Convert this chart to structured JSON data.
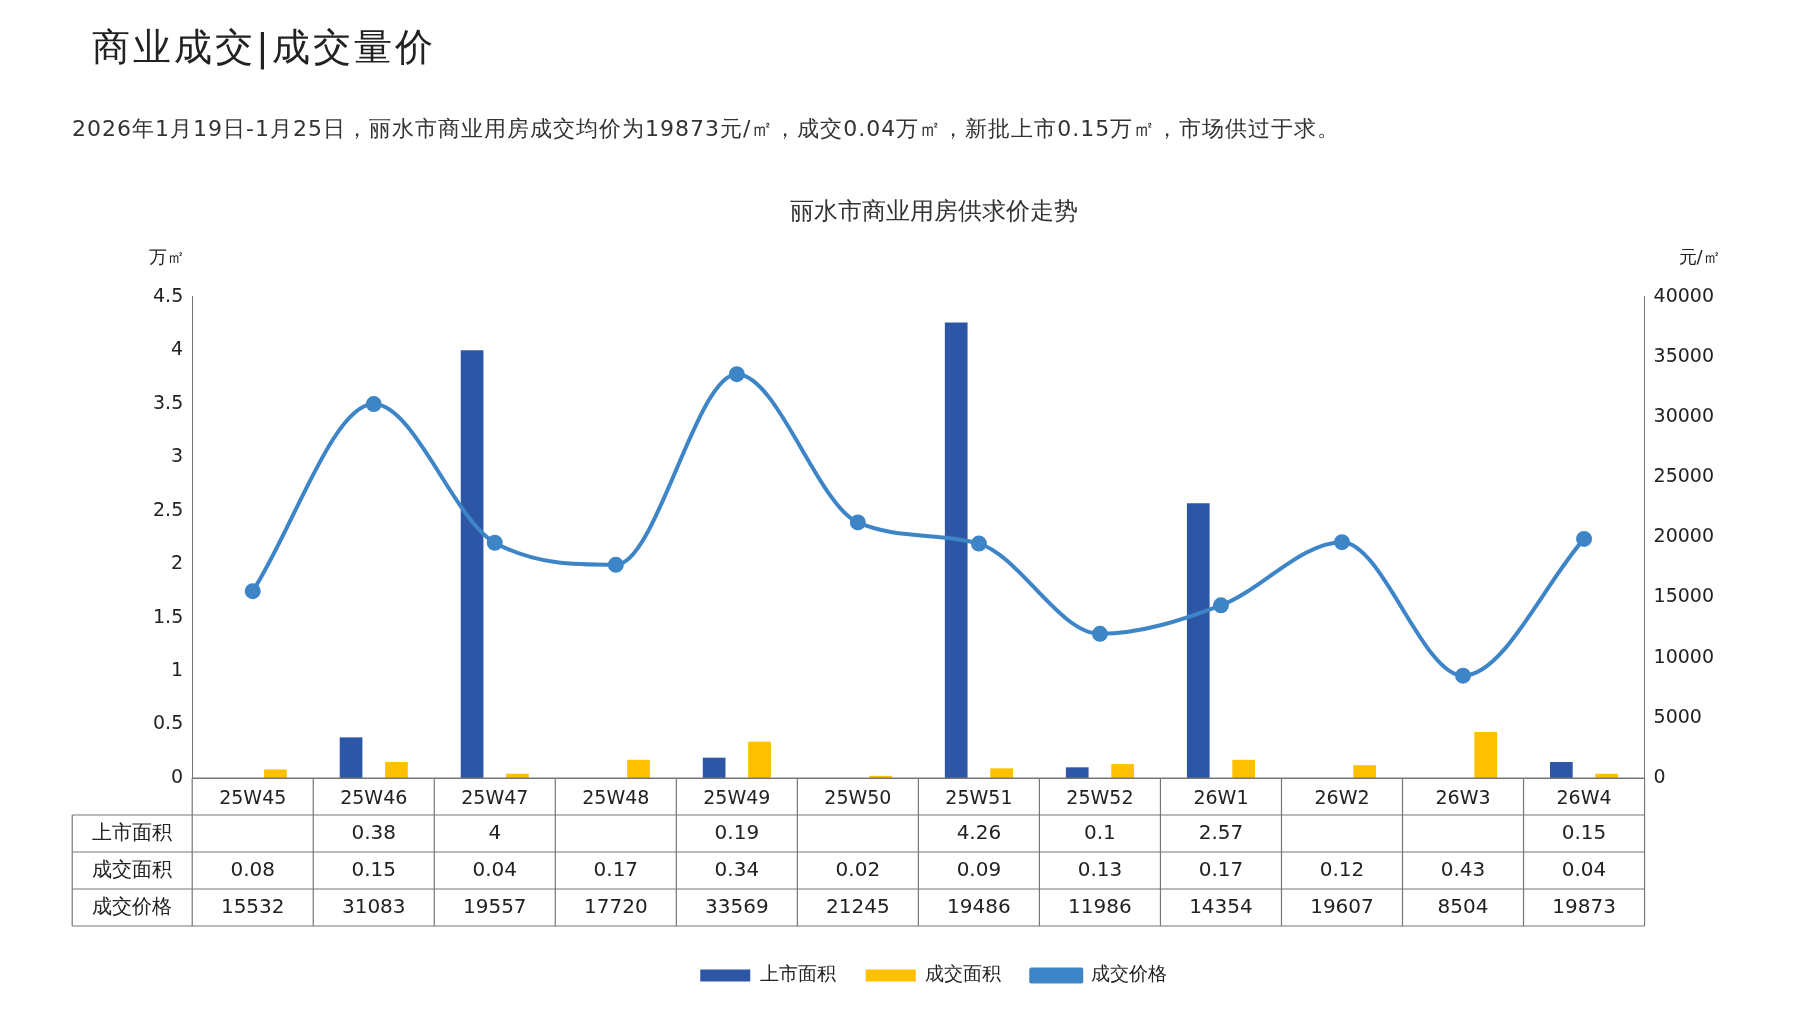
{
  "chart_data": {
    "type": "bar",
    "title": "丽水市商业用房供求价走势",
    "subtitle": "商业成交|成交量价",
    "annotations": [
      "2026年1月19日-1月25日，丽水市商业用房成交均价为19873元/㎡，成交0.04万㎡，新批上市0.15万㎡，市场供过于求。"
    ],
    "ylabel": "万㎡",
    "y2label": "元/㎡",
    "categories": [
      "25W45",
      "25W46",
      "25W47",
      "25W48",
      "25W49",
      "25W50",
      "25W51",
      "25W52",
      "26W1",
      "26W2",
      "26W3",
      "26W4"
    ],
    "series": [
      {
        "name": "上市面积",
        "color": "#2e56a6",
        "values": [
          null,
          0.38,
          4,
          null,
          0.19,
          null,
          4.26,
          0.1,
          2.57,
          null,
          null,
          0.15
        ]
      },
      {
        "name": "成交面积",
        "color": "#ffc000",
        "values": [
          0.08,
          0.15,
          0.04,
          0.17,
          0.34,
          0.02,
          0.09,
          0.13,
          0.17,
          0.12,
          0.43,
          0.04
        ]
      },
      {
        "name": "成交价格",
        "type": "line",
        "axis": "y2",
        "color": "#3d85c6",
        "values": [
          15532,
          31083,
          19557,
          17720,
          33569,
          21245,
          19486,
          11986,
          14354,
          19607,
          8504,
          19873
        ]
      }
    ],
    "ylim": [
      0,
      4.5
    ],
    "yticks": [
      0,
      0.5,
      1,
      1.5,
      2,
      2.5,
      3,
      3.5,
      4,
      4.5
    ],
    "y2lim": [
      0,
      40000
    ],
    "y2ticks": [
      0,
      5000,
      10000,
      15000,
      20000,
      25000,
      30000,
      35000,
      40000
    ],
    "data_labels": true,
    "grid": false,
    "legend": "bottom",
    "marker": "circle",
    "line_style": "solid"
  }
}
